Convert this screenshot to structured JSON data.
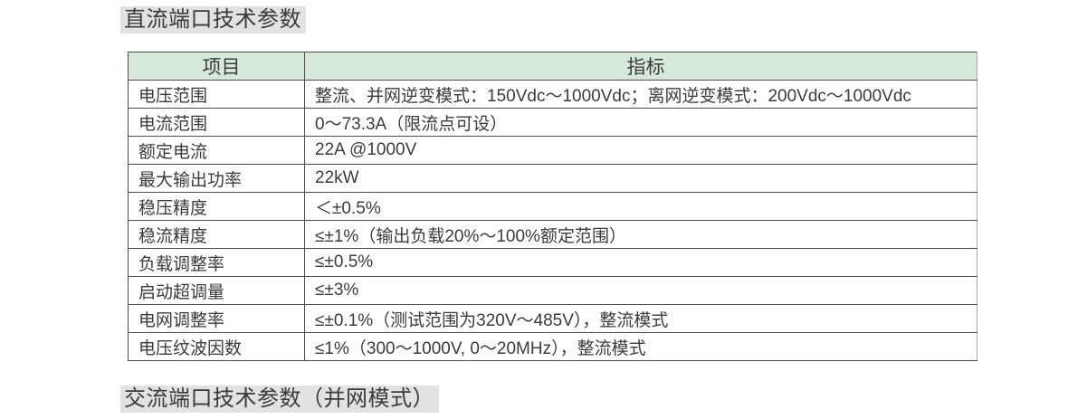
{
  "sections": {
    "dc_title": "直流端口技术参数",
    "ac_title": "交流端口技术参数（并网模式）"
  },
  "colors": {
    "header_bg": "#d6e8d8",
    "title_highlight_bg": "#e2e2e2",
    "border_dark": "#4d4d4d",
    "border_light": "#a8a8a8",
    "text": "#3b3b3b",
    "page_bg": "#ffffff"
  },
  "dc_table": {
    "headers": [
      "项目",
      "指标"
    ],
    "rows": [
      {
        "item": "电压范围",
        "value": "整流、并网逆变模式：150Vdc～1000Vdc；离网逆变模式：200Vdc～1000Vdc"
      },
      {
        "item": "电流范围",
        "value": "0～73.3A（限流点可设）"
      },
      {
        "item": "额定电流",
        "value": "22A @1000V"
      },
      {
        "item": "最大输出功率",
        "value": "22kW"
      },
      {
        "item": "稳压精度",
        "value": "＜±0.5%"
      },
      {
        "item": "稳流精度",
        "value": "≤±1%（输出负载20%～100%额定范围）"
      },
      {
        "item": "负载调整率",
        "value": "≤±0.5%"
      },
      {
        "item": "启动超调量",
        "value": "≤±3%"
      },
      {
        "item": "电网调整率",
        "value": "≤±0.1%（测试范围为320V～485V），整流模式"
      },
      {
        "item": "电压纹波因数",
        "value": "≤1%（300～1000V, 0～20MHz），整流模式"
      }
    ]
  }
}
